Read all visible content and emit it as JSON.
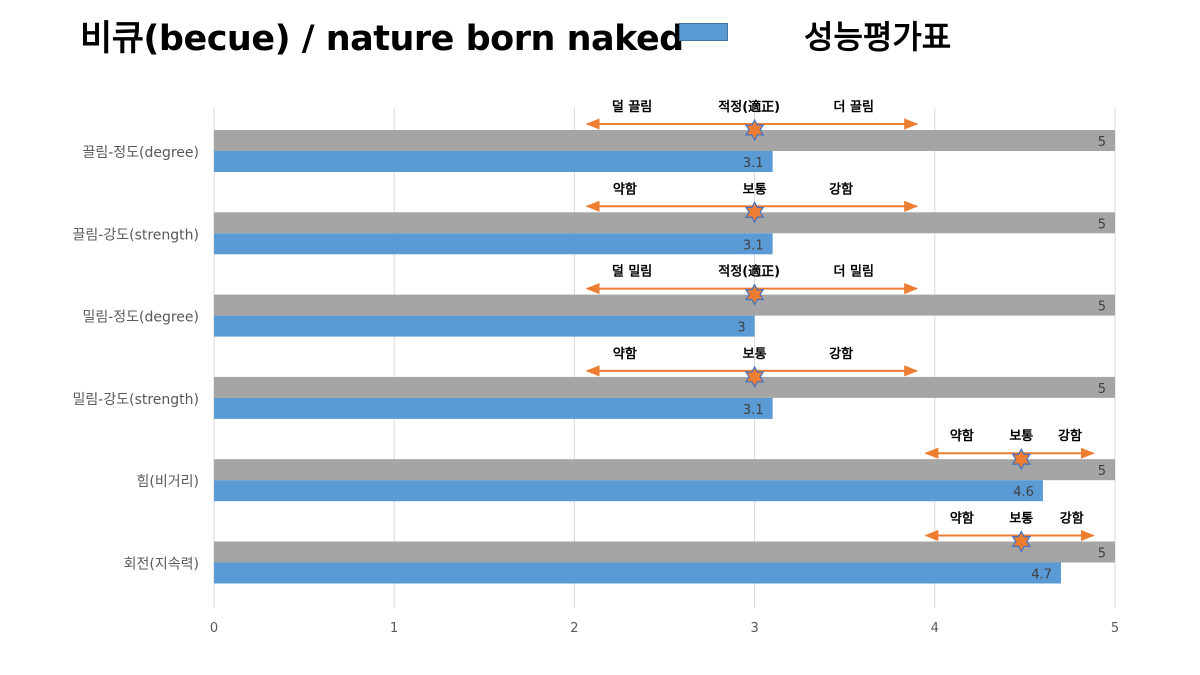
{
  "title": "비큐(becue) / nature born naked",
  "legend": {
    "label": "성능평가표",
    "color": "#5b9bd5"
  },
  "colors": {
    "max_bar": "#a5a5a5",
    "value_bar": "#5b9bd5",
    "arrow": "#ed7d31",
    "star_fill": "#ed7d31",
    "star_stroke": "#4472c4",
    "grid": "#d9d9d9"
  },
  "chart_data": {
    "type": "bar",
    "orientation": "horizontal",
    "xlim": [
      0,
      5
    ],
    "xticks": [
      0,
      1,
      2,
      3,
      4,
      5
    ],
    "grid": true,
    "legend_position": "top",
    "categories": [
      "끌림-정도(degree)",
      "끌림-강도(strength)",
      "밀림-정도(degree)",
      "밀림-강도(strength)",
      "힘(비거리)",
      "회전(지속력)"
    ],
    "series": [
      {
        "name": "",
        "values": [
          5,
          5,
          5,
          5,
          5,
          5
        ]
      },
      {
        "name": "성능평가표",
        "values": [
          3.1,
          3.1,
          3.0,
          3.1,
          4.6,
          4.7
        ]
      }
    ],
    "data_labels": {
      "max": [
        "5",
        "5",
        "5",
        "5",
        "5",
        "5"
      ],
      "value": [
        "3.1",
        "3.1",
        "3",
        "3.1",
        "4.6",
        "4.7"
      ]
    },
    "annotations": [
      {
        "range": [
          2.07,
          3.9
        ],
        "marker": 3.0,
        "labels": [
          {
            "text": "덜 끌림",
            "x": 2.32
          },
          {
            "text": "적정(適正)",
            "x": 2.97
          },
          {
            "text": "더 끌림",
            "x": 3.55
          }
        ]
      },
      {
        "range": [
          2.07,
          3.9
        ],
        "marker": 3.0,
        "labels": [
          {
            "text": "약함",
            "x": 2.28
          },
          {
            "text": "보통",
            "x": 3.0
          },
          {
            "text": "강함",
            "x": 3.48
          }
        ]
      },
      {
        "range": [
          2.07,
          3.9
        ],
        "marker": 3.0,
        "labels": [
          {
            "text": "덜 밀림",
            "x": 2.32
          },
          {
            "text": "적정(適正)",
            "x": 2.97
          },
          {
            "text": "더 밀림",
            "x": 3.55
          }
        ]
      },
      {
        "range": [
          2.07,
          3.9
        ],
        "marker": 3.0,
        "labels": [
          {
            "text": "약함",
            "x": 2.28
          },
          {
            "text": "보통",
            "x": 3.0
          },
          {
            "text": "강함",
            "x": 3.48
          }
        ]
      },
      {
        "range": [
          3.95,
          4.88
        ],
        "marker": 4.48,
        "labels": [
          {
            "text": "약함",
            "x": 4.15
          },
          {
            "text": "보통",
            "x": 4.48
          },
          {
            "text": "강함",
            "x": 4.75
          }
        ]
      },
      {
        "range": [
          3.95,
          4.88
        ],
        "marker": 4.48,
        "labels": [
          {
            "text": "약함",
            "x": 4.15
          },
          {
            "text": "보통",
            "x": 4.48
          },
          {
            "text": "강함",
            "x": 4.76
          }
        ]
      }
    ]
  }
}
